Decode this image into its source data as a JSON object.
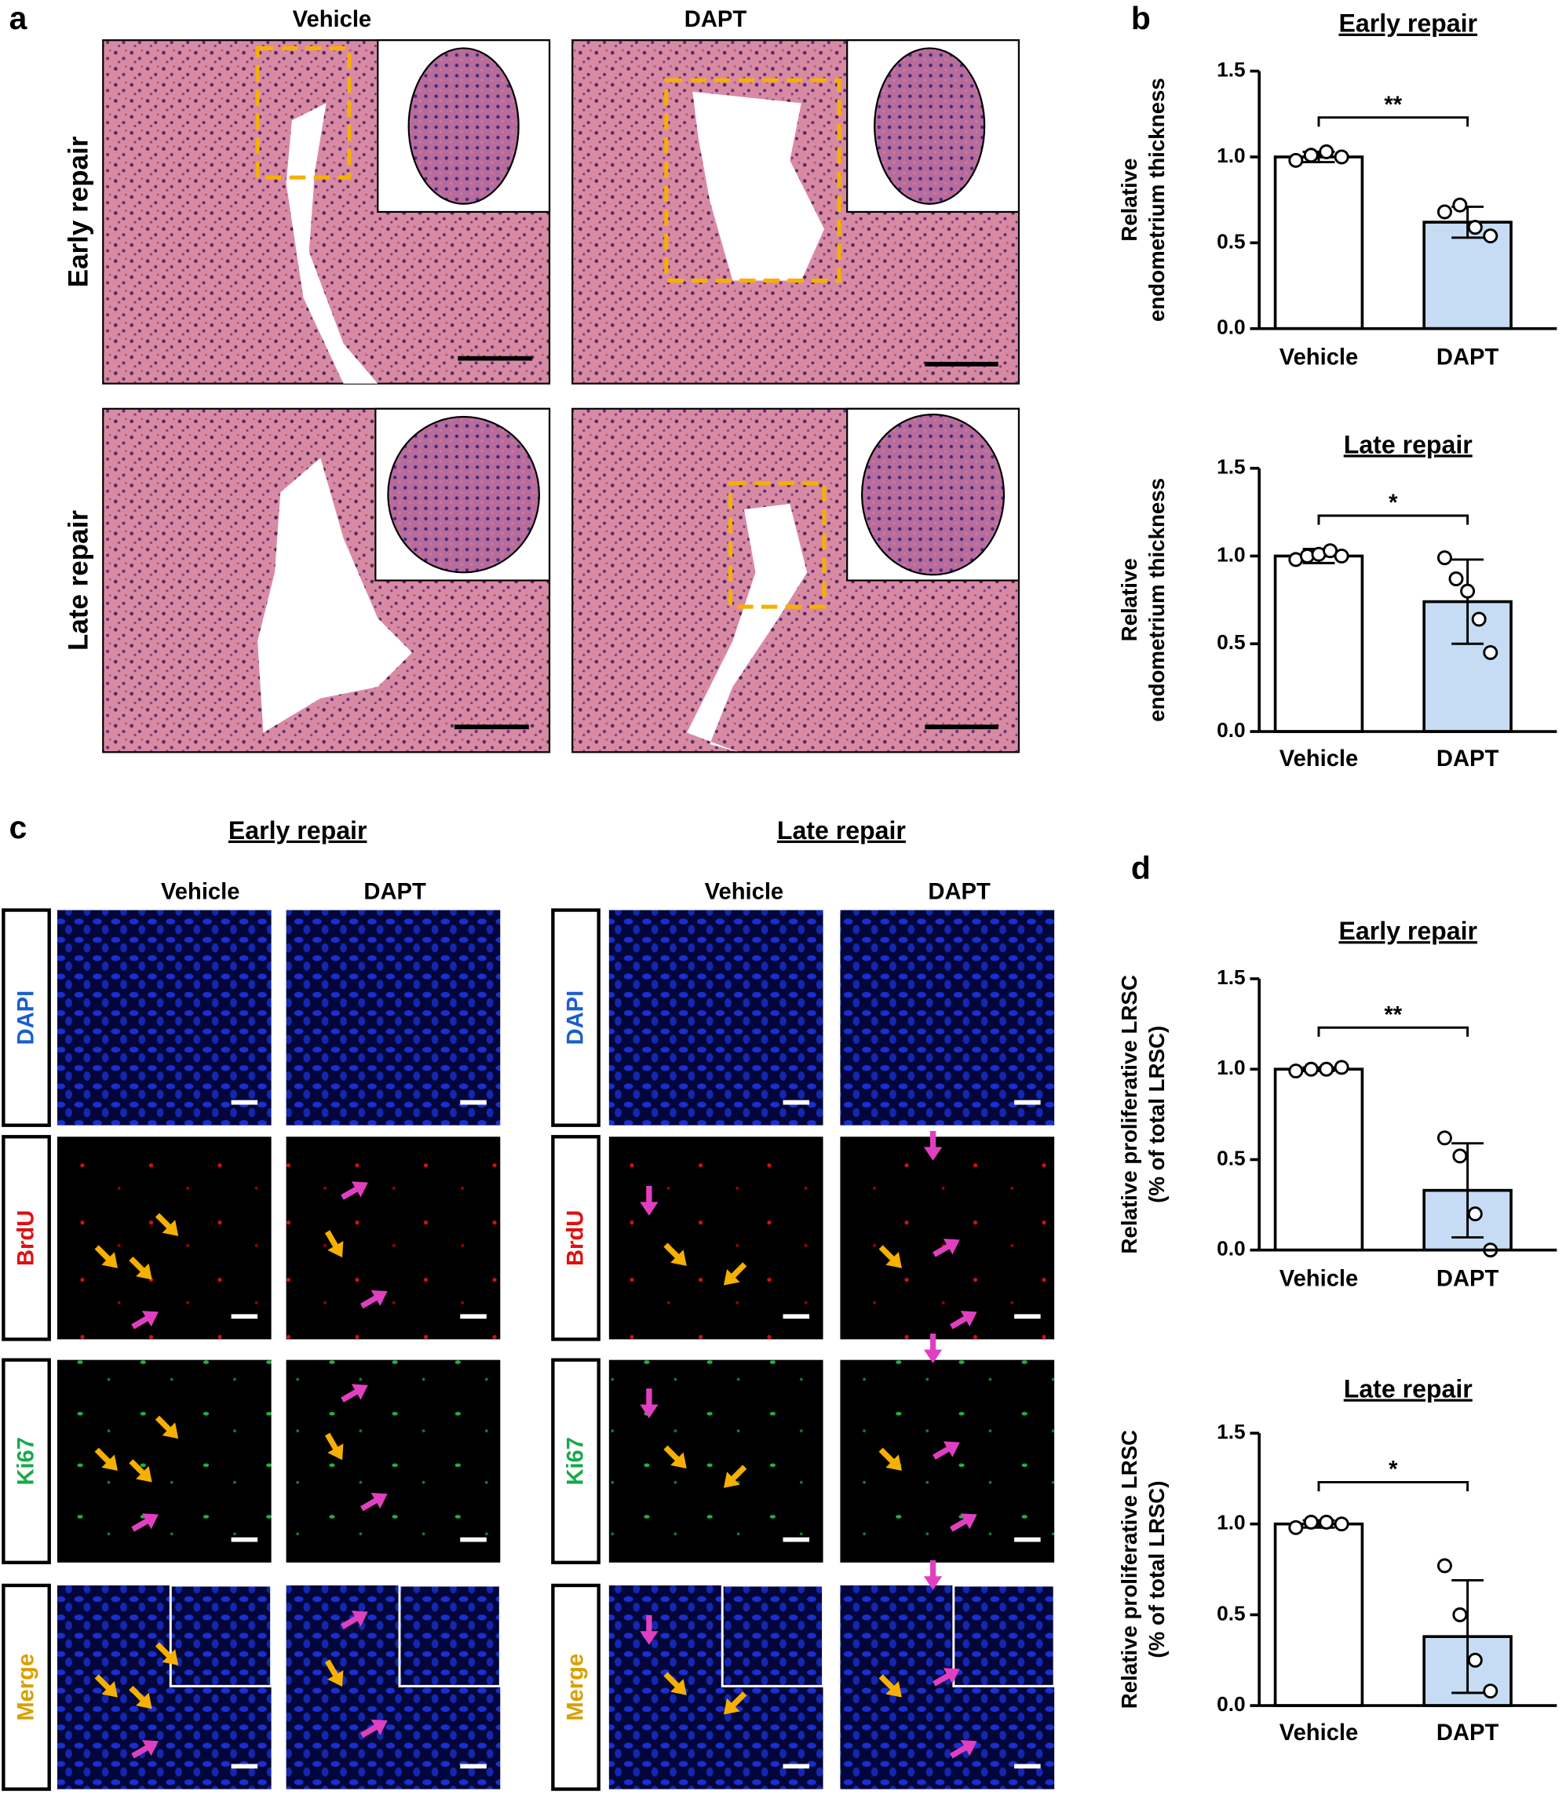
{
  "figure": {
    "panel_labels": [
      "a",
      "b",
      "c",
      "d"
    ],
    "a": {
      "columns": [
        "Vehicle",
        "DAPT"
      ],
      "rows": [
        "Early repair",
        "Late repair"
      ]
    },
    "c": {
      "groups": [
        {
          "title": "Early repair",
          "columns": [
            "Vehicle",
            "DAPT"
          ]
        },
        {
          "title": "Late repair",
          "columns": [
            "Vehicle",
            "DAPT"
          ]
        }
      ],
      "rows": [
        "DAPI",
        "BrdU",
        "Ki67",
        "Merge"
      ]
    }
  },
  "chart_data": [
    {
      "type": "bar",
      "title": "Early repair",
      "y_label": [
        "Relative",
        "endometrium thickness"
      ],
      "categories": [
        "Vehicle",
        "DAPT"
      ],
      "values": [
        1.0,
        0.62
      ],
      "errors": [
        0.03,
        0.09
      ],
      "points": [
        [
          0.98,
          1.01,
          1.03,
          1.0
        ],
        [
          0.68,
          0.72,
          0.59,
          0.54
        ]
      ],
      "colors": [
        "#ffffff",
        "#c6dcf5"
      ],
      "significance": "**",
      "ylim": [
        0,
        1.5
      ],
      "yticks": [
        {
          "value": 0,
          "label": "0.0"
        },
        {
          "value": 0.5,
          "label": "0.5"
        },
        {
          "value": 1,
          "label": "1.0"
        },
        {
          "value": 1.5,
          "label": "1.5"
        }
      ]
    },
    {
      "type": "bar",
      "title": "Late repair",
      "y_label": [
        "Relative",
        "endometrium thickness"
      ],
      "categories": [
        "Vehicle",
        "DAPT"
      ],
      "values": [
        1.0,
        0.74
      ],
      "errors": [
        0.04,
        0.24
      ],
      "points": [
        [
          0.98,
          1.0,
          1.01,
          1.03,
          1.0
        ],
        [
          0.99,
          0.87,
          0.8,
          0.64,
          0.45
        ]
      ],
      "colors": [
        "#ffffff",
        "#c6dcf5"
      ],
      "significance": "*",
      "ylim": [
        0,
        1.5
      ],
      "yticks": [
        {
          "value": 0,
          "label": "0.0"
        },
        {
          "value": 0.5,
          "label": "0.5"
        },
        {
          "value": 1,
          "label": "1.0"
        },
        {
          "value": 1.5,
          "label": "1.5"
        }
      ]
    },
    {
      "type": "bar",
      "title": "Early repair",
      "y_label": [
        "Relative proliferative LRSC",
        "(% of total LRSC)"
      ],
      "categories": [
        "Vehicle",
        "DAPT"
      ],
      "values": [
        1.0,
        0.33
      ],
      "errors": [
        0.01,
        0.26
      ],
      "points": [
        [
          0.99,
          1.0,
          1.0,
          1.01
        ],
        [
          0.62,
          0.52,
          0.2,
          0.0
        ]
      ],
      "colors": [
        "#ffffff",
        "#c6dcf5"
      ],
      "significance": "**",
      "ylim": [
        0,
        1.5
      ],
      "yticks": [
        {
          "value": 0,
          "label": "0.0"
        },
        {
          "value": 0.5,
          "label": "0.5"
        },
        {
          "value": 1,
          "label": "1.0"
        },
        {
          "value": 1.5,
          "label": "1.5"
        }
      ]
    },
    {
      "type": "bar",
      "title": "Late repair",
      "y_label": [
        "Relative proliferative LRSC",
        "(% of total LRSC)"
      ],
      "categories": [
        "Vehicle",
        "DAPT"
      ],
      "values": [
        1.0,
        0.38
      ],
      "errors": [
        0.02,
        0.31
      ],
      "points": [
        [
          0.98,
          1.01,
          1.01,
          1.0
        ],
        [
          0.77,
          0.5,
          0.25,
          0.08
        ]
      ],
      "colors": [
        "#ffffff",
        "#c6dcf5"
      ],
      "significance": "*",
      "ylim": [
        0,
        1.5
      ],
      "yticks": [
        {
          "value": 0,
          "label": "0.0"
        },
        {
          "value": 0.5,
          "label": "0.5"
        },
        {
          "value": 1,
          "label": "1.0"
        },
        {
          "value": 1.5,
          "label": "1.5"
        }
      ]
    }
  ]
}
